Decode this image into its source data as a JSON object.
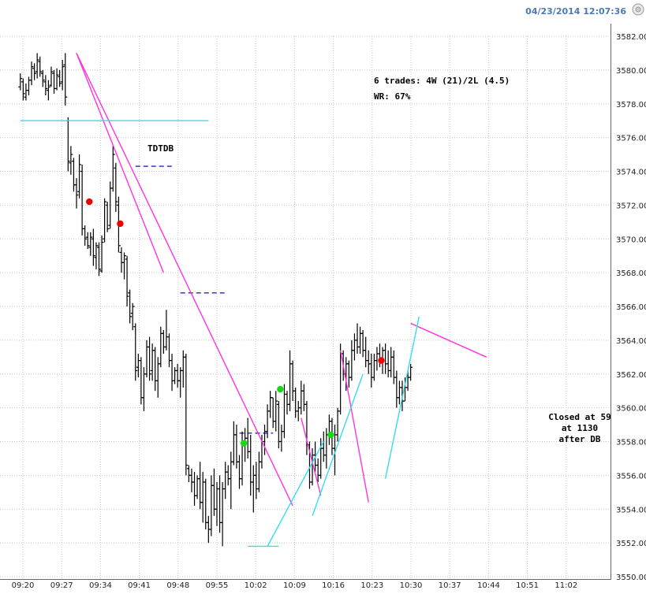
{
  "header": {
    "timestamp": "04/23/2014 12:07:36",
    "timestamp_color": "#4a78b8"
  },
  "chart_data": {
    "type": "ohlc",
    "grid": true,
    "grid_style": "dotted",
    "ylim": [
      3550,
      3582.5
    ],
    "y_ticks": [
      "3550.00",
      "3552.00",
      "3554.00",
      "3556.00",
      "3558.00",
      "3560.00",
      "3562.00",
      "3564.00",
      "3566.00",
      "3568.00",
      "3570.00",
      "3572.00",
      "3574.00",
      "3576.00",
      "3578.00",
      "3580.00",
      "3582.00"
    ],
    "y_tick_values": [
      3550,
      3552,
      3554,
      3556,
      3558,
      3560,
      3562,
      3564,
      3566,
      3568,
      3570,
      3572,
      3574,
      3576,
      3578,
      3580,
      3582
    ],
    "x_ticks": [
      "09:20",
      "09:27",
      "09:34",
      "09:41",
      "09:48",
      "09:55",
      "10:02",
      "10:09",
      "10:16",
      "10:23",
      "10:30",
      "10:37",
      "10:44",
      "10:51",
      "11:02"
    ],
    "bars": [
      {
        "h": 3579.8,
        "l": 3578.8,
        "o": 3579.0,
        "c": 3579.5
      },
      {
        "h": 3579.5,
        "l": 3578.2,
        "o": 3579.3,
        "c": 3578.6
      },
      {
        "h": 3579.2,
        "l": 3578.2,
        "o": 3578.4,
        "c": 3578.8
      },
      {
        "h": 3579.6,
        "l": 3578.5,
        "o": 3578.8,
        "c": 3579.4
      },
      {
        "h": 3580.5,
        "l": 3579.1,
        "o": 3579.4,
        "c": 3580.2
      },
      {
        "h": 3580.4,
        "l": 3579.4,
        "o": 3580.1,
        "c": 3579.8
      },
      {
        "h": 3581.0,
        "l": 3579.5,
        "o": 3579.9,
        "c": 3580.6
      },
      {
        "h": 3580.8,
        "l": 3579.6,
        "o": 3580.5,
        "c": 3579.9
      },
      {
        "h": 3580.0,
        "l": 3579.0,
        "o": 3579.8,
        "c": 3579.4
      },
      {
        "h": 3579.7,
        "l": 3578.5,
        "o": 3579.3,
        "c": 3578.9
      },
      {
        "h": 3579.4,
        "l": 3578.2,
        "o": 3578.8,
        "c": 3579.0
      },
      {
        "h": 3580.2,
        "l": 3579.0,
        "o": 3579.1,
        "c": 3579.9
      },
      {
        "h": 3580.0,
        "l": 3578.6,
        "o": 3579.8,
        "c": 3578.9
      },
      {
        "h": 3580.1,
        "l": 3578.8,
        "o": 3578.9,
        "c": 3579.7
      },
      {
        "h": 3580.0,
        "l": 3579.0,
        "o": 3579.6,
        "c": 3579.2
      },
      {
        "h": 3580.6,
        "l": 3578.8,
        "o": 3579.3,
        "c": 3580.2
      },
      {
        "h": 3581.0,
        "l": 3577.9,
        "o": 3580.3,
        "c": 3578.4
      },
      {
        "h": 3577.2,
        "l": 3574.0,
        "o": 3577.0,
        "c": 3574.6
      },
      {
        "h": 3575.5,
        "l": 3573.8,
        "o": 3574.5,
        "c": 3575.0
      },
      {
        "h": 3574.8,
        "l": 3572.8,
        "o": 3574.6,
        "c": 3573.2
      },
      {
        "h": 3573.6,
        "l": 3571.8,
        "o": 3573.2,
        "c": 3572.6
      },
      {
        "h": 3575.0,
        "l": 3572.4,
        "o": 3572.8,
        "c": 3574.4
      },
      {
        "h": 3574.4,
        "l": 3570.2,
        "o": 3574.0,
        "c": 3570.6
      },
      {
        "h": 3570.8,
        "l": 3569.6,
        "o": 3570.6,
        "c": 3570.0
      },
      {
        "h": 3570.4,
        "l": 3569.4,
        "o": 3570.1,
        "c": 3569.6
      },
      {
        "h": 3570.4,
        "l": 3569.0,
        "o": 3569.5,
        "c": 3570.1
      },
      {
        "h": 3570.6,
        "l": 3568.4,
        "o": 3570.0,
        "c": 3569.0
      },
      {
        "h": 3569.8,
        "l": 3568.2,
        "o": 3568.9,
        "c": 3569.6
      },
      {
        "h": 3569.8,
        "l": 3567.8,
        "o": 3569.5,
        "c": 3568.2
      },
      {
        "h": 3570.2,
        "l": 3568.0,
        "o": 3568.1,
        "c": 3569.8
      },
      {
        "h": 3572.4,
        "l": 3569.8,
        "o": 3570.0,
        "c": 3572.2
      },
      {
        "h": 3572.2,
        "l": 3570.4,
        "o": 3572.0,
        "c": 3570.6
      },
      {
        "h": 3573.4,
        "l": 3570.6,
        "o": 3570.8,
        "c": 3573.0
      },
      {
        "h": 3575.5,
        "l": 3572.8,
        "o": 3573.0,
        "c": 3575.0
      },
      {
        "h": 3574.5,
        "l": 3571.6,
        "o": 3574.2,
        "c": 3572.2
      },
      {
        "h": 3572.5,
        "l": 3569.2,
        "o": 3572.0,
        "c": 3569.6
      },
      {
        "h": 3569.5,
        "l": 3568.0,
        "o": 3569.2,
        "c": 3568.6
      },
      {
        "h": 3569.2,
        "l": 3567.6,
        "o": 3568.6,
        "c": 3569.0
      },
      {
        "h": 3569.0,
        "l": 3566.0,
        "o": 3568.8,
        "c": 3566.6
      },
      {
        "h": 3567.0,
        "l": 3565.0,
        "o": 3566.8,
        "c": 3565.4
      },
      {
        "h": 3566.2,
        "l": 3564.6,
        "o": 3565.6,
        "c": 3566.0
      },
      {
        "h": 3565.0,
        "l": 3561.6,
        "o": 3564.8,
        "c": 3562.2
      },
      {
        "h": 3563.2,
        "l": 3561.8,
        "o": 3562.4,
        "c": 3562.8
      },
      {
        "h": 3563.0,
        "l": 3560.2,
        "o": 3562.8,
        "c": 3560.6
      },
      {
        "h": 3562.4,
        "l": 3559.8,
        "o": 3560.6,
        "c": 3562.0
      },
      {
        "h": 3564.0,
        "l": 3561.8,
        "o": 3562.0,
        "c": 3563.6
      },
      {
        "h": 3564.2,
        "l": 3561.6,
        "o": 3563.6,
        "c": 3562.0
      },
      {
        "h": 3563.8,
        "l": 3561.6,
        "o": 3562.2,
        "c": 3563.4
      },
      {
        "h": 3563.6,
        "l": 3561.0,
        "o": 3563.4,
        "c": 3561.6
      },
      {
        "h": 3563.0,
        "l": 3560.6,
        "o": 3561.6,
        "c": 3562.6
      },
      {
        "h": 3564.8,
        "l": 3562.4,
        "o": 3562.6,
        "c": 3564.4
      },
      {
        "h": 3564.6,
        "l": 3563.2,
        "o": 3564.4,
        "c": 3563.6
      },
      {
        "h": 3565.8,
        "l": 3563.4,
        "o": 3563.6,
        "c": 3564.2
      },
      {
        "h": 3564.4,
        "l": 3562.4,
        "o": 3564.2,
        "c": 3562.8
      },
      {
        "h": 3563.2,
        "l": 3561.0,
        "o": 3562.8,
        "c": 3561.6
      },
      {
        "h": 3562.4,
        "l": 3561.4,
        "o": 3561.6,
        "c": 3562.2
      },
      {
        "h": 3562.6,
        "l": 3561.2,
        "o": 3562.2,
        "c": 3561.6
      },
      {
        "h": 3562.4,
        "l": 3560.6,
        "o": 3561.6,
        "c": 3562.2
      },
      {
        "h": 3563.4,
        "l": 3561.2,
        "o": 3562.2,
        "c": 3563.0
      },
      {
        "h": 3563.2,
        "l": 3556.0,
        "o": 3563.0,
        "c": 3556.6
      },
      {
        "h": 3556.6,
        "l": 3555.6,
        "o": 3556.4,
        "c": 3556.0
      },
      {
        "h": 3556.4,
        "l": 3555.0,
        "o": 3556.0,
        "c": 3555.6
      },
      {
        "h": 3556.2,
        "l": 3554.2,
        "o": 3555.6,
        "c": 3554.8
      },
      {
        "h": 3556.0,
        "l": 3554.6,
        "o": 3554.8,
        "c": 3555.8
      },
      {
        "h": 3556.8,
        "l": 3554.0,
        "o": 3555.8,
        "c": 3554.4
      },
      {
        "h": 3556.2,
        "l": 3553.2,
        "o": 3554.4,
        "c": 3555.6
      },
      {
        "h": 3555.8,
        "l": 3552.8,
        "o": 3555.6,
        "c": 3553.2
      },
      {
        "h": 3553.6,
        "l": 3552.0,
        "o": 3553.2,
        "c": 3552.8
      },
      {
        "h": 3556.0,
        "l": 3552.4,
        "o": 3552.8,
        "c": 3555.4
      },
      {
        "h": 3556.4,
        "l": 3553.6,
        "o": 3555.4,
        "c": 3554.0
      },
      {
        "h": 3555.6,
        "l": 3553.0,
        "o": 3554.0,
        "c": 3555.2
      },
      {
        "h": 3556.0,
        "l": 3552.6,
        "o": 3555.2,
        "c": 3553.2
      },
      {
        "h": 3555.6,
        "l": 3551.8,
        "o": 3553.2,
        "c": 3555.2
      },
      {
        "h": 3556.8,
        "l": 3554.6,
        "o": 3555.2,
        "c": 3556.2
      },
      {
        "h": 3556.6,
        "l": 3555.4,
        "o": 3556.2,
        "c": 3555.8
      },
      {
        "h": 3557.4,
        "l": 3554.0,
        "o": 3555.8,
        "c": 3556.8
      },
      {
        "h": 3559.2,
        "l": 3556.6,
        "o": 3556.8,
        "c": 3558.4
      },
      {
        "h": 3559.0,
        "l": 3556.4,
        "o": 3558.4,
        "c": 3556.8
      },
      {
        "h": 3557.2,
        "l": 3555.2,
        "o": 3556.8,
        "c": 3555.8
      },
      {
        "h": 3558.6,
        "l": 3555.4,
        "o": 3555.8,
        "c": 3557.8
      },
      {
        "h": 3558.8,
        "l": 3556.8,
        "o": 3557.8,
        "c": 3558.2
      },
      {
        "h": 3559.4,
        "l": 3557.0,
        "o": 3558.2,
        "c": 3557.4
      },
      {
        "h": 3558.4,
        "l": 3554.8,
        "o": 3557.4,
        "c": 3555.6
      },
      {
        "h": 3556.6,
        "l": 3553.8,
        "o": 3555.6,
        "c": 3556.0
      },
      {
        "h": 3556.8,
        "l": 3554.6,
        "o": 3556.0,
        "c": 3555.2
      },
      {
        "h": 3557.4,
        "l": 3555.0,
        "o": 3555.2,
        "c": 3556.8
      },
      {
        "h": 3558.4,
        "l": 3556.4,
        "o": 3556.8,
        "c": 3558.0
      },
      {
        "h": 3559.0,
        "l": 3557.2,
        "o": 3558.0,
        "c": 3558.6
      },
      {
        "h": 3560.2,
        "l": 3558.2,
        "o": 3558.6,
        "c": 3559.8
      },
      {
        "h": 3561.0,
        "l": 3559.4,
        "o": 3559.8,
        "c": 3560.6
      },
      {
        "h": 3560.6,
        "l": 3558.8,
        "o": 3560.6,
        "c": 3559.2
      },
      {
        "h": 3561.0,
        "l": 3558.6,
        "o": 3559.2,
        "c": 3560.4
      },
      {
        "h": 3560.4,
        "l": 3557.6,
        "o": 3560.2,
        "c": 3558.0
      },
      {
        "h": 3559.0,
        "l": 3557.4,
        "o": 3558.0,
        "c": 3558.6
      },
      {
        "h": 3561.4,
        "l": 3558.2,
        "o": 3558.6,
        "c": 3560.8
      },
      {
        "h": 3561.0,
        "l": 3559.6,
        "o": 3560.8,
        "c": 3560.2
      },
      {
        "h": 3563.4,
        "l": 3559.8,
        "o": 3560.2,
        "c": 3562.6
      },
      {
        "h": 3562.8,
        "l": 3560.4,
        "o": 3562.6,
        "c": 3561.0
      },
      {
        "h": 3561.2,
        "l": 3559.4,
        "o": 3561.0,
        "c": 3559.8
      },
      {
        "h": 3560.4,
        "l": 3559.2,
        "o": 3559.8,
        "c": 3560.0
      },
      {
        "h": 3561.6,
        "l": 3559.6,
        "o": 3560.0,
        "c": 3561.0
      },
      {
        "h": 3561.4,
        "l": 3559.8,
        "o": 3561.0,
        "c": 3560.2
      },
      {
        "h": 3560.4,
        "l": 3557.2,
        "o": 3560.2,
        "c": 3557.8
      },
      {
        "h": 3558.0,
        "l": 3555.2,
        "o": 3557.8,
        "c": 3555.6
      },
      {
        "h": 3557.6,
        "l": 3555.4,
        "o": 3555.6,
        "c": 3557.2
      },
      {
        "h": 3558.0,
        "l": 3556.2,
        "o": 3557.2,
        "c": 3556.6
      },
      {
        "h": 3557.0,
        "l": 3555.6,
        "o": 3556.6,
        "c": 3556.0
      },
      {
        "h": 3558.2,
        "l": 3555.8,
        "o": 3556.0,
        "c": 3557.6
      },
      {
        "h": 3558.6,
        "l": 3556.8,
        "o": 3557.6,
        "c": 3557.2
      },
      {
        "h": 3558.8,
        "l": 3556.4,
        "o": 3557.2,
        "c": 3558.4
      },
      {
        "h": 3559.6,
        "l": 3557.8,
        "o": 3558.4,
        "c": 3559.2
      },
      {
        "h": 3559.4,
        "l": 3557.2,
        "o": 3559.2,
        "c": 3557.6
      },
      {
        "h": 3559.0,
        "l": 3556.0,
        "o": 3557.6,
        "c": 3558.4
      },
      {
        "h": 3560.0,
        "l": 3558.0,
        "o": 3558.4,
        "c": 3559.8
      },
      {
        "h": 3563.8,
        "l": 3559.6,
        "o": 3559.8,
        "c": 3563.2
      },
      {
        "h": 3563.4,
        "l": 3561.6,
        "o": 3563.2,
        "c": 3562.0
      },
      {
        "h": 3563.0,
        "l": 3561.0,
        "o": 3562.0,
        "c": 3562.6
      },
      {
        "h": 3562.8,
        "l": 3561.2,
        "o": 3562.6,
        "c": 3561.8
      },
      {
        "h": 3564.0,
        "l": 3561.6,
        "o": 3561.8,
        "c": 3563.4
      },
      {
        "h": 3564.4,
        "l": 3562.8,
        "o": 3563.4,
        "c": 3564.0
      },
      {
        "h": 3565.0,
        "l": 3563.2,
        "o": 3564.0,
        "c": 3563.6
      },
      {
        "h": 3564.8,
        "l": 3563.2,
        "o": 3563.6,
        "c": 3564.4
      },
      {
        "h": 3564.6,
        "l": 3563.0,
        "o": 3564.4,
        "c": 3563.4
      },
      {
        "h": 3564.2,
        "l": 3562.4,
        "o": 3563.4,
        "c": 3562.8
      },
      {
        "h": 3563.4,
        "l": 3562.0,
        "o": 3562.8,
        "c": 3562.6
      },
      {
        "h": 3563.2,
        "l": 3561.2,
        "o": 3562.6,
        "c": 3561.8
      },
      {
        "h": 3563.2,
        "l": 3561.6,
        "o": 3561.8,
        "c": 3562.8
      },
      {
        "h": 3563.6,
        "l": 3562.2,
        "o": 3562.8,
        "c": 3563.2
      },
      {
        "h": 3563.8,
        "l": 3562.4,
        "o": 3563.2,
        "c": 3562.8
      },
      {
        "h": 3563.6,
        "l": 3562.0,
        "o": 3562.8,
        "c": 3563.4
      },
      {
        "h": 3563.8,
        "l": 3562.0,
        "o": 3563.4,
        "c": 3562.6
      },
      {
        "h": 3563.4,
        "l": 3561.8,
        "o": 3562.6,
        "c": 3562.2
      },
      {
        "h": 3563.6,
        "l": 3561.8,
        "o": 3562.2,
        "c": 3563.0
      },
      {
        "h": 3563.4,
        "l": 3561.4,
        "o": 3563.0,
        "c": 3561.8
      },
      {
        "h": 3562.2,
        "l": 3560.0,
        "o": 3561.8,
        "c": 3560.6
      },
      {
        "h": 3561.6,
        "l": 3560.2,
        "o": 3560.6,
        "c": 3561.2
      },
      {
        "h": 3561.6,
        "l": 3559.8,
        "o": 3561.2,
        "c": 3560.4
      },
      {
        "h": 3561.8,
        "l": 3560.4,
        "o": 3560.4,
        "c": 3561.2
      },
      {
        "h": 3562.2,
        "l": 3561.0,
        "o": 3561.2,
        "c": 3561.8
      },
      {
        "h": 3562.6,
        "l": 3561.6,
        "o": 3561.8,
        "c": 3562.4
      }
    ],
    "annotations": {
      "stats_line1": "6 trades: 4W (21)/2L (4.5)",
      "stats_line2": "WR: 67%",
      "tdtdb_label": "TDTDB",
      "closed_line1": "Closed at 59",
      "closed_line2": "at 1130",
      "closed_line3": "after DB"
    },
    "markers": [
      {
        "color": "#ee0000",
        "bar": 24,
        "y": 3572.2
      },
      {
        "color": "#ee0000",
        "bar": 35,
        "y": 3570.9
      },
      {
        "color": "#11dd11",
        "bar": 79,
        "y": 3557.9
      },
      {
        "color": "#11dd11",
        "bar": 92,
        "y": 3561.1
      },
      {
        "color": "#11dd11",
        "bar": 110,
        "y": 3558.4
      },
      {
        "color": "#ee0000",
        "bar": 128,
        "y": 3562.8
      }
    ],
    "trendlines_magenta": [
      [
        [
          0,
          3581.0
        ],
        [
          77,
          3554.2
        ]
      ],
      [
        [
          0,
          3581.0
        ],
        [
          31,
          3568.0
        ]
      ],
      [
        [
          80,
          3559.4
        ],
        [
          87,
          3554.8
        ]
      ],
      [
        [
          94,
          3563.4
        ],
        [
          104,
          3554.4
        ]
      ],
      [
        [
          119,
          3565.0
        ],
        [
          146,
          3563.0
        ]
      ]
    ],
    "trendlines_cyan": [
      [
        [
          -20,
          3577.0
        ],
        [
          47,
          3577.0
        ]
      ],
      [
        [
          61,
          3551.8
        ],
        [
          72,
          3551.8
        ]
      ],
      [
        [
          68,
          3551.8
        ],
        [
          88,
          3558.0
        ]
      ],
      [
        [
          84,
          3553.6
        ],
        [
          102,
          3562.0
        ]
      ],
      [
        [
          110,
          3555.8
        ],
        [
          122,
          3565.4
        ]
      ]
    ],
    "dashed_levels": [
      {
        "color": "#2222cc",
        "x1": 21,
        "x2": 35,
        "y": 3574.3
      },
      {
        "color": "#2222cc",
        "x1": 37,
        "x2": 53,
        "y": 3566.8
      },
      {
        "color": "#2222cc",
        "x1": 58,
        "x2": 70,
        "y": 3558.5
      }
    ],
    "colors": {
      "bars": "#000000",
      "magenta": "#ff33dd",
      "cyan": "#33ddee",
      "grid": "#c8c8c8"
    }
  }
}
